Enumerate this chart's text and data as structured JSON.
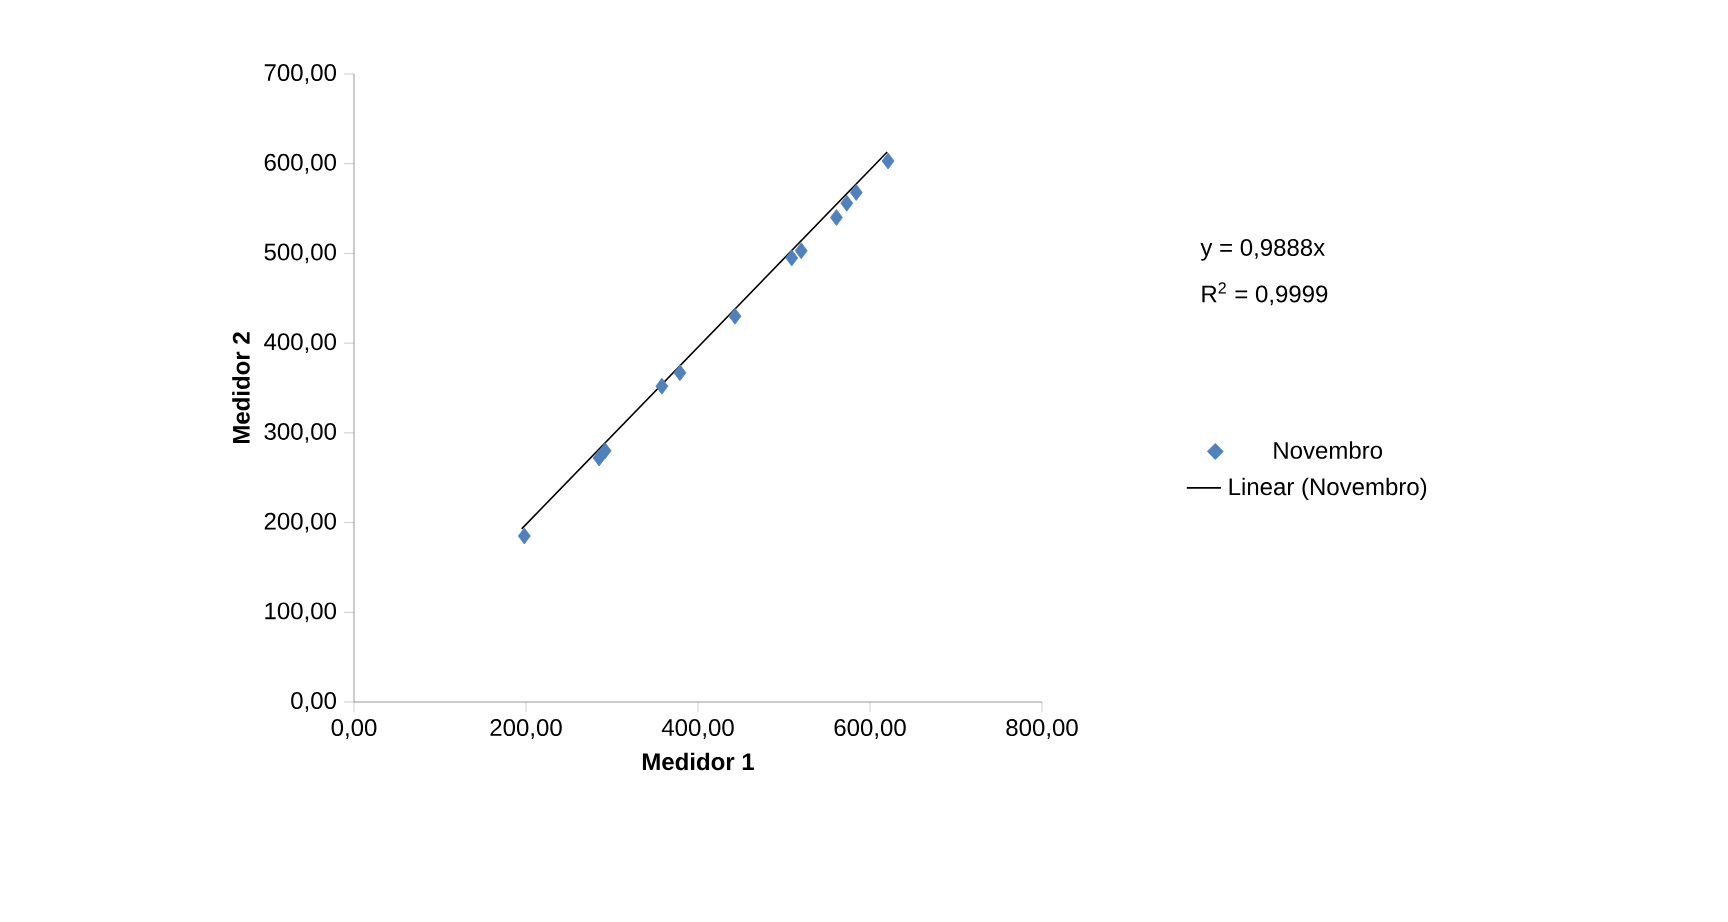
{
  "chart_data": {
    "type": "scatter",
    "xlabel": "Medidor 1",
    "ylabel": "Medidor 2",
    "annotations": [
      "y = 0,9888x",
      "R$^{2}$ = 0,9999"
    ],
    "xlim": [
      0,
      800
    ],
    "ylim": [
      0,
      700
    ],
    "xticks": [
      {
        "value": 0,
        "label": "0,00"
      },
      {
        "value": 200,
        "label": "200,00"
      },
      {
        "value": 400,
        "label": "400,00"
      },
      {
        "value": 600,
        "label": "600,00"
      },
      {
        "value": 800,
        "label": "800,00"
      }
    ],
    "yticks": [
      {
        "value": 0,
        "label": "0,00"
      },
      {
        "value": 100,
        "label": "100,00"
      },
      {
        "value": 200,
        "label": "200,00"
      },
      {
        "value": 300,
        "label": "300,00"
      },
      {
        "value": 400,
        "label": "400,00"
      },
      {
        "value": 500,
        "label": "500,00"
      },
      {
        "value": 600,
        "label": "600,00"
      },
      {
        "value": 700,
        "label": "700,00"
      }
    ],
    "legend": "right",
    "series": [
      {
        "name": "Novembro",
        "marker": "diamond",
        "color": "#4f81bd",
        "x": [
          198,
          285,
          292,
          358,
          379,
          443,
          509,
          520,
          561,
          573,
          584,
          621
        ],
        "values": [
          185,
          272,
          280,
          352,
          367,
          430,
          495,
          503,
          540,
          556,
          568,
          603
        ]
      },
      {
        "name": "Linear (Novembro)",
        "type": "line",
        "marker": "none",
        "color": "#000000",
        "x": [
          195,
          620
        ],
        "values": [
          193,
          613
        ]
      }
    ]
  }
}
